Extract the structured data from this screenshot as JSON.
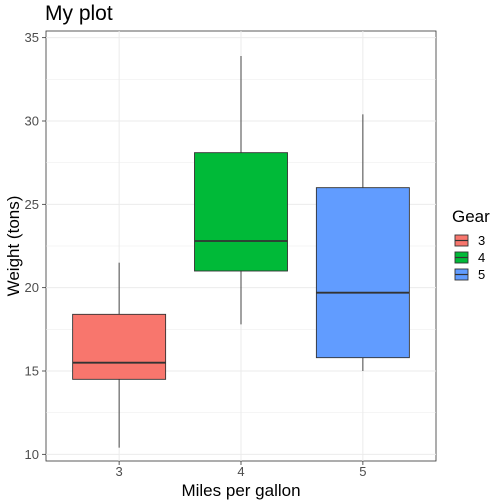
{
  "chart_data": {
    "type": "boxplot",
    "title": "My plot",
    "xlabel": "Miles per gallon",
    "ylabel": "Weight (tons)",
    "categories": [
      "3",
      "4",
      "5"
    ],
    "ylim": [
      9.6,
      35.4
    ],
    "yticks": [
      10,
      15,
      20,
      25,
      30,
      35
    ],
    "grid": true,
    "legend_title": "Gear",
    "legend_position": "right",
    "boxes": [
      {
        "name": "3",
        "color": "#F8766D",
        "min": 10.4,
        "q1": 14.5,
        "median": 15.5,
        "q3": 18.4,
        "max": 21.5
      },
      {
        "name": "4",
        "color": "#00BA38",
        "min": 17.8,
        "q1": 21.0,
        "median": 22.8,
        "q3": 28.1,
        "max": 33.9
      },
      {
        "name": "5",
        "color": "#619CFF",
        "min": 15.0,
        "q1": 15.8,
        "median": 19.7,
        "q3": 26.0,
        "max": 30.4
      }
    ]
  }
}
